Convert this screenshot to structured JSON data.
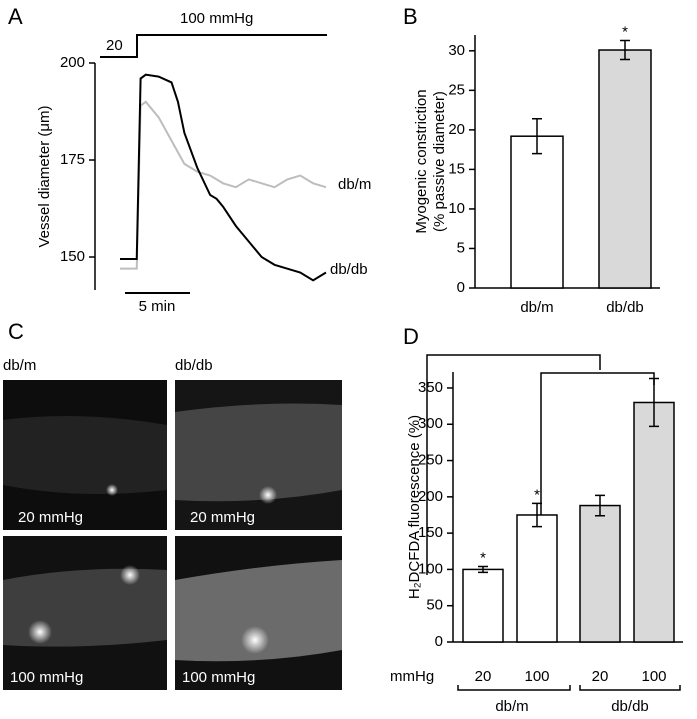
{
  "chart_data": [
    {
      "type": "line",
      "panel": "A",
      "ylabel": "Vessel diameter (μm)",
      "pressure_labels": [
        "20",
        "100 mmHg"
      ],
      "scale_bar": "5 min",
      "x": [
        0,
        1,
        1.3,
        1.6,
        2,
        3,
        4,
        4.5,
        5,
        6,
        7,
        7.5,
        8,
        9,
        10,
        11,
        12,
        13,
        14,
        15,
        16
      ],
      "xlim": [
        0,
        16
      ],
      "ylim": [
        141.5,
        200
      ],
      "yticks": [
        150,
        175,
        200
      ],
      "series": [
        {
          "name": "db/m",
          "color": "#bdbdbd",
          "values": [
            147,
            147,
            147,
            189,
            190,
            186,
            180,
            177,
            174,
            172,
            171,
            170,
            169,
            168,
            170,
            169,
            168,
            170,
            171,
            169,
            168
          ]
        },
        {
          "name": "db/db",
          "color": "#000000",
          "values": [
            149.5,
            149.5,
            149.5,
            196,
            197,
            196.5,
            195,
            190,
            182,
            173,
            166,
            165,
            163,
            158,
            154,
            150,
            148,
            147,
            146,
            144,
            146
          ]
        }
      ]
    },
    {
      "type": "bar",
      "panel": "B",
      "ylabel": [
        "Myogenic constriction",
        "(% passive diameter)"
      ],
      "categories": [
        "db/m",
        "db/db"
      ],
      "values": [
        19.2,
        30.1
      ],
      "errors": [
        2.2,
        1.2
      ],
      "colors": [
        "#ffffff",
        "#d9d9d9"
      ],
      "value_annotations": [
        null,
        "*"
      ],
      "ylim": [
        0,
        32
      ],
      "yticks": [
        0,
        5,
        10,
        15,
        20,
        25,
        30
      ]
    },
    {
      "type": "bar",
      "panel": "D",
      "ylabel": "H₂DCFDA fluorescence (%)",
      "xlabel": "mmHg",
      "categories": [
        "20",
        "100",
        "20",
        "100"
      ],
      "groups": [
        "db/m",
        "db/db"
      ],
      "values": [
        100,
        175,
        188,
        330
      ],
      "errors": [
        4,
        16,
        14,
        33
      ],
      "colors": [
        "#ffffff",
        "#ffffff",
        "#d9d9d9",
        "#d9d9d9"
      ],
      "value_annotations": [
        "*",
        "*",
        null,
        null
      ],
      "ylim": [
        0,
        372
      ],
      "yticks": [
        0,
        50,
        100,
        150,
        200,
        250,
        300,
        350
      ]
    }
  ],
  "image_panel": {
    "panel": "C",
    "columns": [
      "db/m",
      "db/db"
    ],
    "rows": [
      "20 mmHg",
      "100 mmHg"
    ]
  }
}
